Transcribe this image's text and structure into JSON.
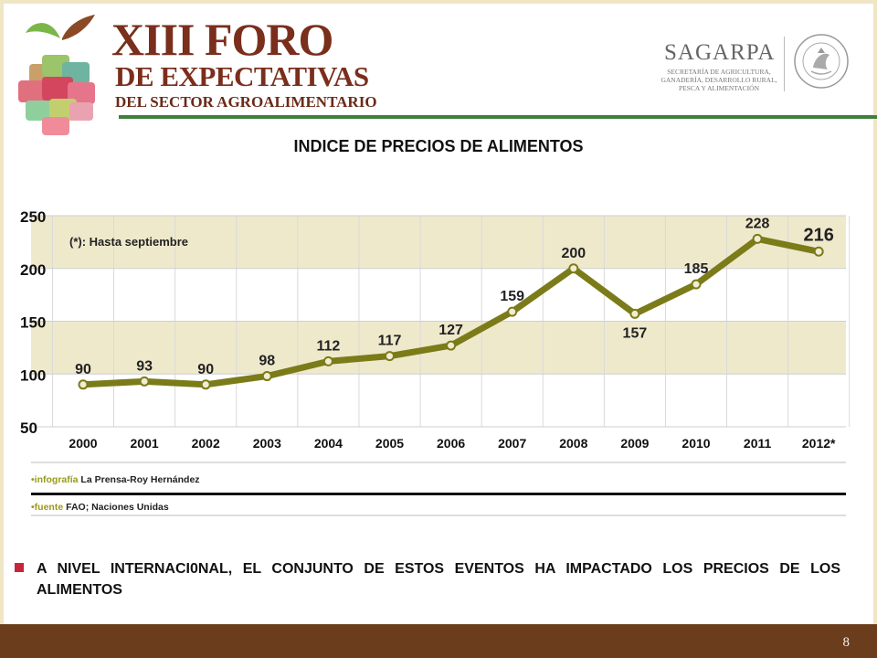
{
  "header": {
    "title_line1_a": "XIII",
    "title_line1_b": "FORO",
    "title_line2": "DE EXPECTATIVAS",
    "title_line3": "DEL SECTOR AGROALIMENTARIO",
    "org_name": "SAGARPA",
    "org_subtitle": "SECRETARÍA DE AGRICULTURA, GANADERÍA, DESARROLLO RURAL, PESCA Y ALIMENTACIÓN",
    "seal_text": "ESTADOS UNIDOS MEXICANOS"
  },
  "slide_title": "INDICE DE PRECIOS DE ALIMENTOS",
  "chart_data": {
    "type": "line",
    "categories": [
      "2000",
      "2001",
      "2002",
      "2003",
      "2004",
      "2005",
      "2006",
      "2007",
      "2008",
      "2009",
      "2010",
      "2011",
      "2012*"
    ],
    "values": [
      90,
      93,
      90,
      98,
      112,
      117,
      127,
      159,
      200,
      157,
      185,
      228,
      216
    ],
    "data_labels": [
      "90",
      "93",
      "90",
      "98",
      "112",
      "117",
      "127",
      "159",
      "200",
      "157",
      "185",
      "228",
      "216"
    ],
    "ylim": [
      50,
      250
    ],
    "yticks": [
      "250",
      "200",
      "150",
      "100",
      "50"
    ],
    "ytick_values": [
      250,
      200,
      150,
      100,
      50
    ],
    "note": "(*): Hasta septiembre",
    "credit_label": "•infografía",
    "credit_text": "La Prensa-Roy Hernández",
    "source_label": "•fuente",
    "source_text": "FAO; Naciones Unidas",
    "colors": {
      "line": "#7b7b19",
      "band": "#efe9cc",
      "grid": "#d9d9d9",
      "point_fill": "#f1edd2"
    }
  },
  "body_text": "A NIVEL INTERNACI0NAL, EL CONJUNTO DE ESTOS EVENTOS HA   IMPACTADO LOS PRECIOS DE LOS ALIMENTOS",
  "footer": {
    "page_number": "8",
    "color": "#6b3d1c"
  }
}
